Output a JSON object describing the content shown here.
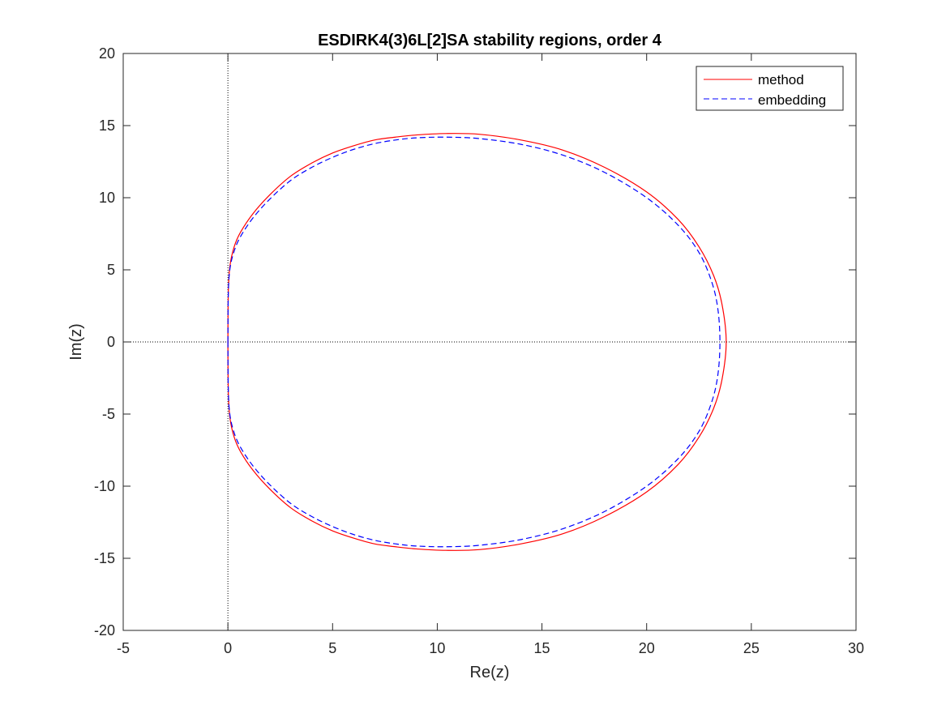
{
  "chart_data": {
    "type": "line",
    "title": "ESDIRK4(3)6L[2]SA stability regions, order 4",
    "xlabel": "Re(z)",
    "ylabel": "Im(z)",
    "xlim": [
      -5,
      30
    ],
    "ylim": [
      -20,
      20
    ],
    "xticks": [
      -5,
      0,
      5,
      10,
      15,
      20,
      25,
      30
    ],
    "yticks": [
      -20,
      -15,
      -10,
      -5,
      0,
      5,
      10,
      15,
      20
    ],
    "xtick_labels": [
      "-5",
      "0",
      "5",
      "10",
      "15",
      "20",
      "25",
      "30"
    ],
    "ytick_labels": [
      "-20",
      "-15",
      "-10",
      "-5",
      "0",
      "5",
      "10",
      "15",
      "20"
    ],
    "grid": false,
    "reference_lines": {
      "x0": 0,
      "y0": 0,
      "style": "dotted",
      "color": "#000000"
    },
    "legend": {
      "location": "top-right",
      "entries": [
        "method",
        "embedding"
      ]
    },
    "series": [
      {
        "name": "method",
        "color": "#ff0000",
        "line_style": "solid",
        "x": [
          0,
          0.02,
          0.1,
          0.3,
          0.6,
          1.2,
          2.0,
          3.0,
          4.0,
          5.0,
          6.0,
          7.0,
          8.0,
          9.0,
          10.4,
          12.0,
          14.0,
          16.0,
          18.0,
          20.0,
          21.5,
          22.5,
          23.2,
          23.6,
          23.8,
          23.6,
          23.2,
          22.5,
          21.5,
          20.0,
          18.0,
          16.0,
          14.0,
          12.0,
          10.4,
          9.0,
          8.0,
          7.0,
          6.0,
          5.0,
          4.0,
          3.0,
          2.0,
          1.2,
          0.6,
          0.3,
          0.1,
          0.02,
          0
        ],
        "y": [
          0,
          3.5,
          5.3,
          6.6,
          7.6,
          8.9,
          10.2,
          11.5,
          12.4,
          13.1,
          13.6,
          14.0,
          14.2,
          14.35,
          14.45,
          14.4,
          14.0,
          13.3,
          12.1,
          10.4,
          8.5,
          6.6,
          4.6,
          2.6,
          0,
          -2.6,
          -4.6,
          -6.6,
          -8.5,
          -10.4,
          -12.1,
          -13.3,
          -14.0,
          -14.4,
          -14.45,
          -14.35,
          -14.2,
          -14.0,
          -13.6,
          -13.1,
          -12.4,
          -11.5,
          -10.2,
          -8.9,
          -7.6,
          -6.6,
          -5.3,
          -3.5,
          0
        ]
      },
      {
        "name": "embedding",
        "color": "#0000ff",
        "line_style": "dashed",
        "x": [
          0,
          0.02,
          0.1,
          0.3,
          0.6,
          1.2,
          2.0,
          3.0,
          4.0,
          5.0,
          6.0,
          7.0,
          8.0,
          9.0,
          10.4,
          12.0,
          14.0,
          16.0,
          18.0,
          20.0,
          21.5,
          22.5,
          23.1,
          23.4,
          23.5,
          23.4,
          23.1,
          22.5,
          21.5,
          20.0,
          18.0,
          16.0,
          14.0,
          12.0,
          10.4,
          9.0,
          8.0,
          7.0,
          6.0,
          5.0,
          4.0,
          3.0,
          2.0,
          1.2,
          0.6,
          0.3,
          0.1,
          0.02,
          0
        ],
        "y": [
          0,
          3.4,
          5.1,
          6.3,
          7.3,
          8.6,
          9.9,
          11.2,
          12.1,
          12.8,
          13.35,
          13.75,
          14.0,
          14.15,
          14.2,
          14.1,
          13.7,
          12.95,
          11.75,
          10.0,
          8.1,
          6.2,
          4.2,
          2.3,
          0,
          -2.3,
          -4.2,
          -6.2,
          -8.1,
          -10.0,
          -11.75,
          -12.95,
          -13.7,
          -14.1,
          -14.2,
          -14.15,
          -14.0,
          -13.75,
          -13.35,
          -12.8,
          -12.1,
          -11.2,
          -9.9,
          -8.6,
          -7.3,
          -6.3,
          -5.1,
          -3.4,
          0
        ]
      }
    ]
  }
}
